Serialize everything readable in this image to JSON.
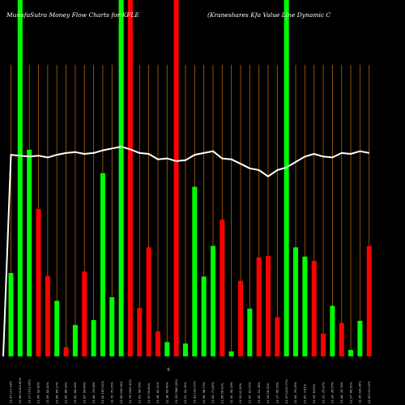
{
  "page": {
    "title_left": "MunafaSutra  Money Flow  Charts for KFLE",
    "title_right": "(Kraneshares Kfa  Value   Line  Dynamic C"
  },
  "colors": {
    "background": "#000000",
    "up_bar": "#00ff00",
    "down_bar": "#ff0000",
    "price_line": "#ffffff",
    "gridline": "#b8620a"
  },
  "chart_data": {
    "type": "bar",
    "title": "MunafaSutra  Money Flow  Charts for KFLE",
    "subtitle": "(Kraneshares Kfa  Value   Line  Dynamic C",
    "zero_label": "0",
    "bars": [
      {
        "date": "21 Jul 2021",
        "volume": 117,
        "color": "up",
        "label": "21.97 117.14%"
      },
      {
        "date": "20 Jul 2021",
        "volume": 500,
        "color": "up",
        "label": "21.64 92102.60%"
      },
      {
        "date": "19 Jul 2021",
        "volume": 290,
        "color": "up",
        "label": "21.17 1011.05%"
      },
      {
        "date": "16 Jul 2021",
        "volume": 207,
        "color": "down",
        "label": "21.49 -52.83%"
      },
      {
        "date": "15 Jul 2021",
        "volume": 113,
        "color": "down",
        "label": "21.59 -62.42%"
      },
      {
        "date": "14 Jul 2021",
        "volume": 78,
        "color": "up",
        "label": "21.66 -85.17%"
      },
      {
        "date": "13 Jul 2021",
        "volume": 13,
        "color": "down",
        "label": "21.55 -86.99%"
      },
      {
        "date": "12 Jul 2021",
        "volume": 44,
        "color": "up",
        "label": "21.62 -84.24%"
      },
      {
        "date": "09 Jul 2021",
        "volume": 119,
        "color": "down",
        "label": "21.67 -54.49%"
      },
      {
        "date": "08 Jul 2021",
        "volume": 51,
        "color": "up",
        "label": "21.49 -79.64%"
      },
      {
        "date": "07 Jul 2021",
        "volume": 257,
        "color": "up",
        "label": "21.60 187.52%"
      },
      {
        "date": "06 Jul 2021",
        "volume": 83,
        "color": "up",
        "label": "21.79 -70.25%"
      },
      {
        "date": "02 Jul 2021",
        "volume": 500,
        "color": "up",
        "label": "21.85 339.05%"
      },
      {
        "date": "01 Jul 2021",
        "volume": 500,
        "color": "down",
        "label": "21.76 3906.42%"
      },
      {
        "date": "30 Jun 2021",
        "volume": 68,
        "color": "down",
        "label": "21.63 -54.75%"
      },
      {
        "date": "29 Jun 2021",
        "volume": 153,
        "color": "down",
        "label": "21.57 95.82%"
      },
      {
        "date": "28 Jun 2021",
        "volume": 35,
        "color": "down",
        "label": "21.38 -60.31%"
      },
      {
        "date": "25 Jun 2021",
        "volume": 20,
        "color": "up",
        "label": "21.38 -69.40%"
      },
      {
        "date": "24 Jun 2021",
        "volume": 500,
        "color": "down",
        "label": "21.29 7560.29%"
      },
      {
        "date": "23 Jun 2021",
        "volume": 18,
        "color": "up",
        "label": "21.31 -92.30%"
      },
      {
        "date": "22 Jun 2021",
        "volume": 238,
        "color": "up",
        "label": "21.43 129.07%"
      },
      {
        "date": "21 Jun 2021",
        "volume": 112,
        "color": "up",
        "label": "21.45 -58.73%"
      },
      {
        "date": "18 Jun 2021",
        "volume": 155,
        "color": "up",
        "label": "21.55 -71.82%"
      },
      {
        "date": "17 Jun 2021",
        "volume": 192,
        "color": "down",
        "label": "21.58 56.31%"
      },
      {
        "date": "16 Jun 2021",
        "volume": 7,
        "color": "up",
        "label": "21.50 -95.16%"
      },
      {
        "date": "15 Jun 2021",
        "volume": 106,
        "color": "down",
        "label": "21.53 41.26%"
      },
      {
        "date": "14 Jun 2021",
        "volume": 67,
        "color": "up",
        "label": "21.47 -61.72%"
      },
      {
        "date": "11 Jun 2021",
        "volume": 139,
        "color": "down",
        "label": "21.49 -12.36%"
      },
      {
        "date": "10 Jun 2021",
        "volume": 141,
        "color": "down",
        "label": "21.34 28.12%"
      },
      {
        "date": "09 Jun 2021",
        "volume": 55,
        "color": "down",
        "label": "21.27 -65.29%"
      },
      {
        "date": "08 Jun 2021",
        "volume": 500,
        "color": "up",
        "label": "21.37 2213.77%"
      },
      {
        "date": "07 Jun 2021",
        "volume": 153,
        "color": "up",
        "label": "21.43 -79.26%"
      },
      {
        "date": "04 Jun 2021",
        "volume": 140,
        "color": "up",
        "label": "21.41 -3.81%"
      },
      {
        "date": "03 Jun 2021",
        "volume": 134,
        "color": "down",
        "label": "21.35 -8.09%"
      },
      {
        "date": "02 Jun 2021",
        "volume": 32,
        "color": "down",
        "label": "21.31 -75.97%"
      },
      {
        "date": "01 Jun 2021",
        "volume": 71,
        "color": "up",
        "label": "21.39 -36.57%"
      },
      {
        "date": "28 May 2021",
        "volume": 47,
        "color": "down",
        "label": "21.44 -35.74%"
      },
      {
        "date": "27 May 2021",
        "volume": 9,
        "color": "up",
        "label": "21.37 -86.52%"
      },
      {
        "date": "26 May 2021",
        "volume": 50,
        "color": "up",
        "label": "21.36 329.38%"
      },
      {
        "date": "25 May 2021",
        "volume": 155,
        "color": "down",
        "label": "21.43 210.00%"
      }
    ],
    "price_line": [
      0,
      21.78,
      21.77,
      21.76,
      21.77,
      21.75,
      21.78,
      21.8,
      21.81,
      21.79,
      21.8,
      21.83,
      21.85,
      21.87,
      21.84,
      21.8,
      21.79,
      21.73,
      21.74,
      21.71,
      21.72,
      21.78,
      21.8,
      21.82,
      21.74,
      21.73,
      21.68,
      21.63,
      21.61,
      21.54,
      21.61,
      21.64,
      21.7,
      21.76,
      21.79,
      21.76,
      21.75,
      21.8,
      21.79,
      21.82,
      21.8
    ],
    "volume_range": [
      0,
      500
    ],
    "price_range": [
      19.0,
      23.5
    ],
    "grid": true,
    "legend": "none"
  }
}
